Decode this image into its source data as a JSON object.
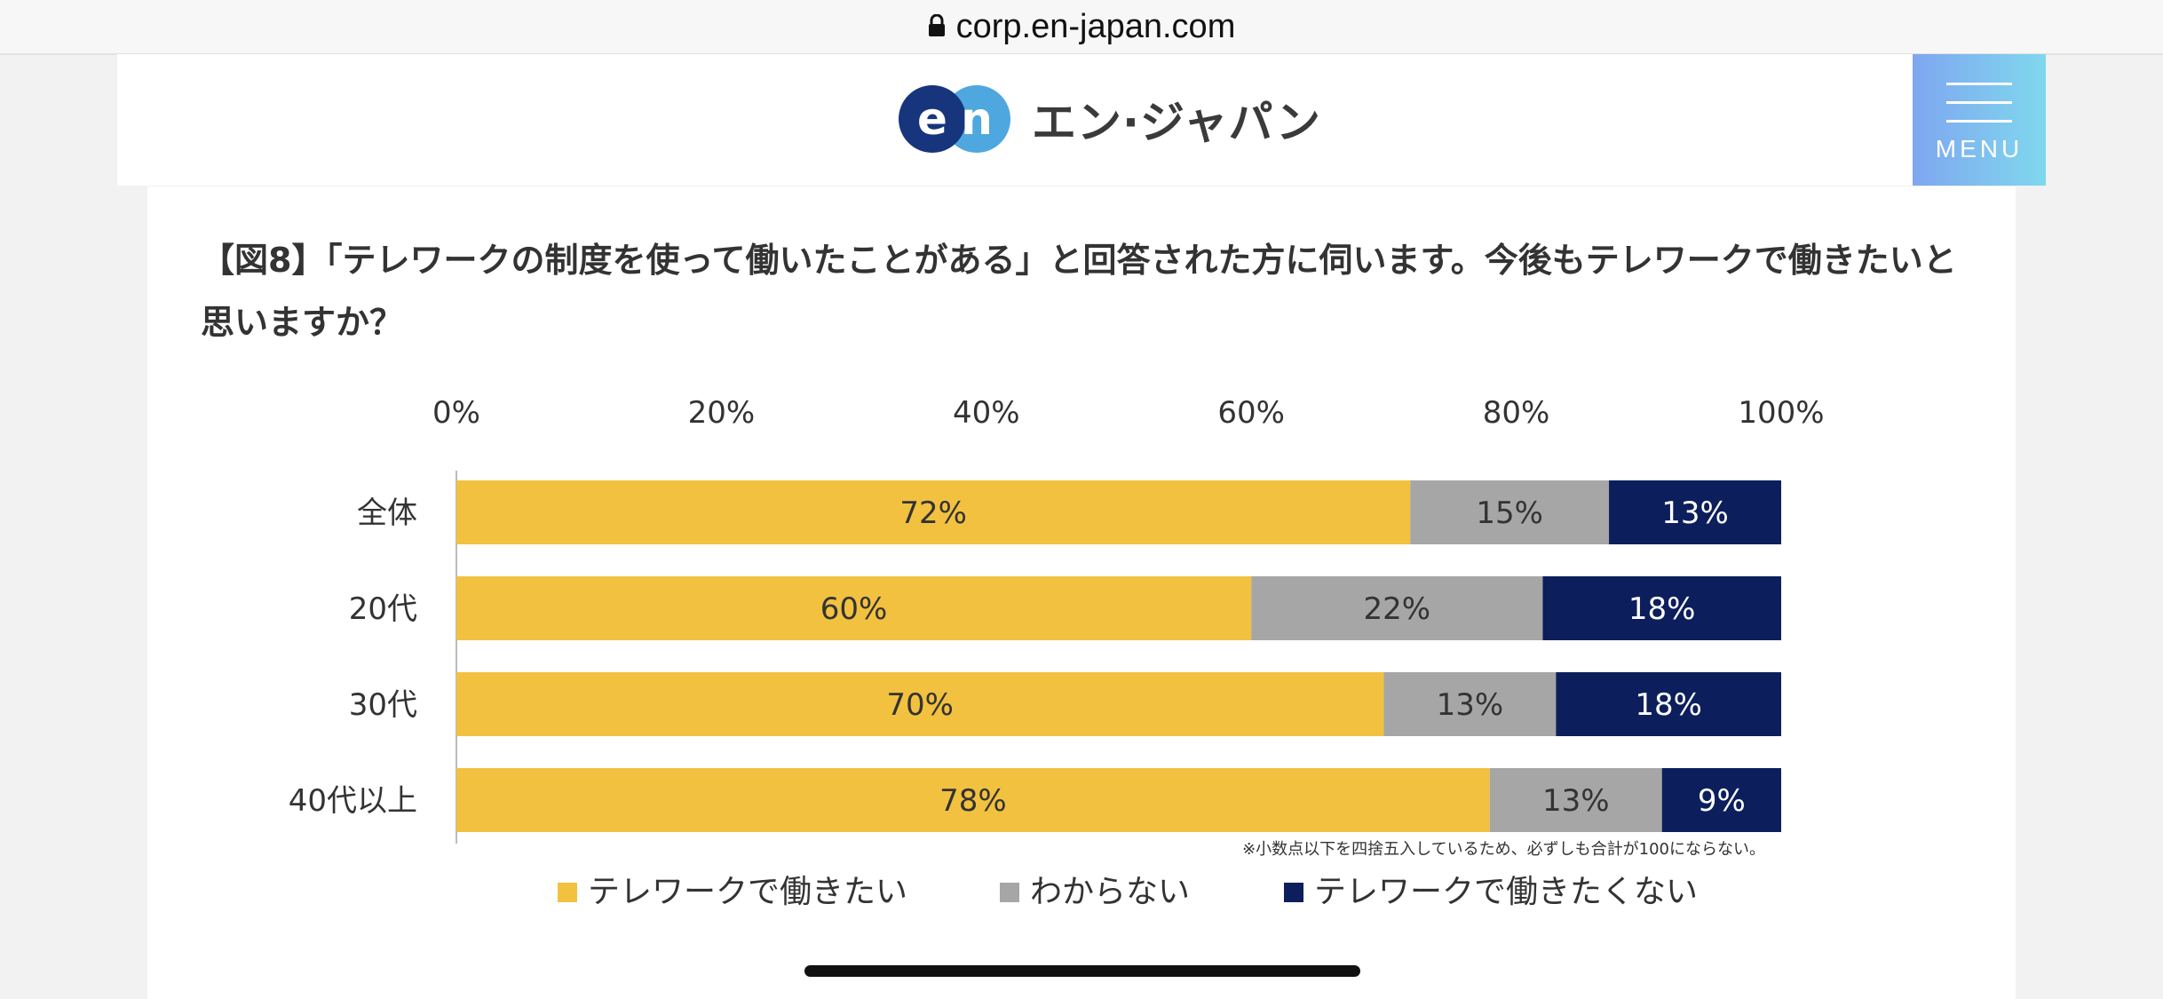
{
  "browser": {
    "url": "corp.en-japan.com"
  },
  "header": {
    "logo_letters": "en",
    "logo_text": "エン·ジャパン",
    "menu_label": "MENU"
  },
  "article": {
    "figure_title": "【図8】「テレワークの制度を使って働いたことがある」と回答された方に伺います。今後もテレワークで働きたいと思いますか？"
  },
  "chart_data": {
    "type": "bar",
    "orientation": "horizontal",
    "stacked": true,
    "x_ticks": [
      "0%",
      "20%",
      "40%",
      "60%",
      "80%",
      "100%"
    ],
    "xlim": [
      0,
      100
    ],
    "categories": [
      "全体",
      "20代",
      "30代",
      "40代以上"
    ],
    "series": [
      {
        "name": "テレワークで働きたい",
        "color": "#f2c140",
        "label_color": "#333333",
        "values": [
          72,
          60,
          70,
          78
        ],
        "labels": [
          "72%",
          "60%",
          "70%",
          "78%"
        ]
      },
      {
        "name": "わからない",
        "color": "#a6a6a6",
        "label_color": "#333333",
        "values": [
          15,
          22,
          13,
          13
        ],
        "labels": [
          "15%",
          "22%",
          "13%",
          "13%"
        ]
      },
      {
        "name": "テレワークで働きたくない",
        "color": "#0c1f5c",
        "label_color": "#ffffff",
        "values": [
          13,
          18,
          18,
          9
        ],
        "labels": [
          "13%",
          "18%",
          "18%",
          "9%"
        ]
      }
    ],
    "note": "※小数点以下を四捨五入しているため、必ずしも合計が100にならない。",
    "legend_position": "bottom"
  }
}
